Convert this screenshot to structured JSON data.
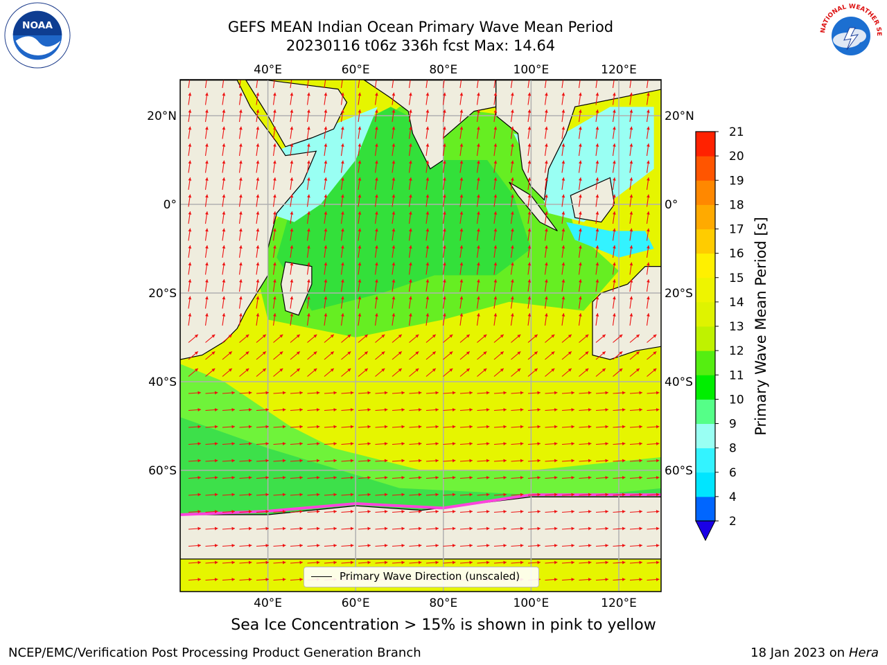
{
  "title": {
    "line1": "GEFS MEAN Indian Ocean Primary Wave Mean Period",
    "line2": "20230116 t06z 336h fcst   Max: 14.64"
  },
  "logos": {
    "left": {
      "icon": "noaa-logo",
      "text": "NOAA"
    },
    "right": {
      "icon": "national-weather-service-logo",
      "text": "NATIONAL WEATHER SERVICE"
    }
  },
  "map": {
    "lon_ticks": [
      "40°E",
      "60°E",
      "80°E",
      "100°E",
      "120°E"
    ],
    "lat_ticks": [
      "20°N",
      "0°",
      "20°S",
      "40°S",
      "60°S"
    ],
    "land_color": "#efedde",
    "grid": true
  },
  "legend": {
    "label": "Primary Wave Direction (unscaled)"
  },
  "colorbar": {
    "label": "Primary Wave Mean Period [s]",
    "ticks": [
      "2",
      "4",
      "6",
      "8",
      "9",
      "10",
      "11",
      "12",
      "13",
      "14",
      "15",
      "16",
      "17",
      "18",
      "19",
      "20",
      "21"
    ],
    "colors": [
      "#0066ff",
      "#00e5ff",
      "#33f3ff",
      "#99fff3",
      "#55ff88",
      "#00ee00",
      "#55ee11",
      "#bff200",
      "#dff300",
      "#eef400",
      "#fff000",
      "#ffcc00",
      "#ffaa00",
      "#ff8800",
      "#ff5500",
      "#ff2200"
    ],
    "extend_color": "#1a00e6"
  },
  "subtitle": "Sea Ice Concentration > 15% is shown in pink to yellow",
  "credit": "NCEP/EMC/Verification Post Processing Product Generation Branch",
  "footer": {
    "date": "18 Jan 2023 on",
    "host": "Hera"
  }
}
